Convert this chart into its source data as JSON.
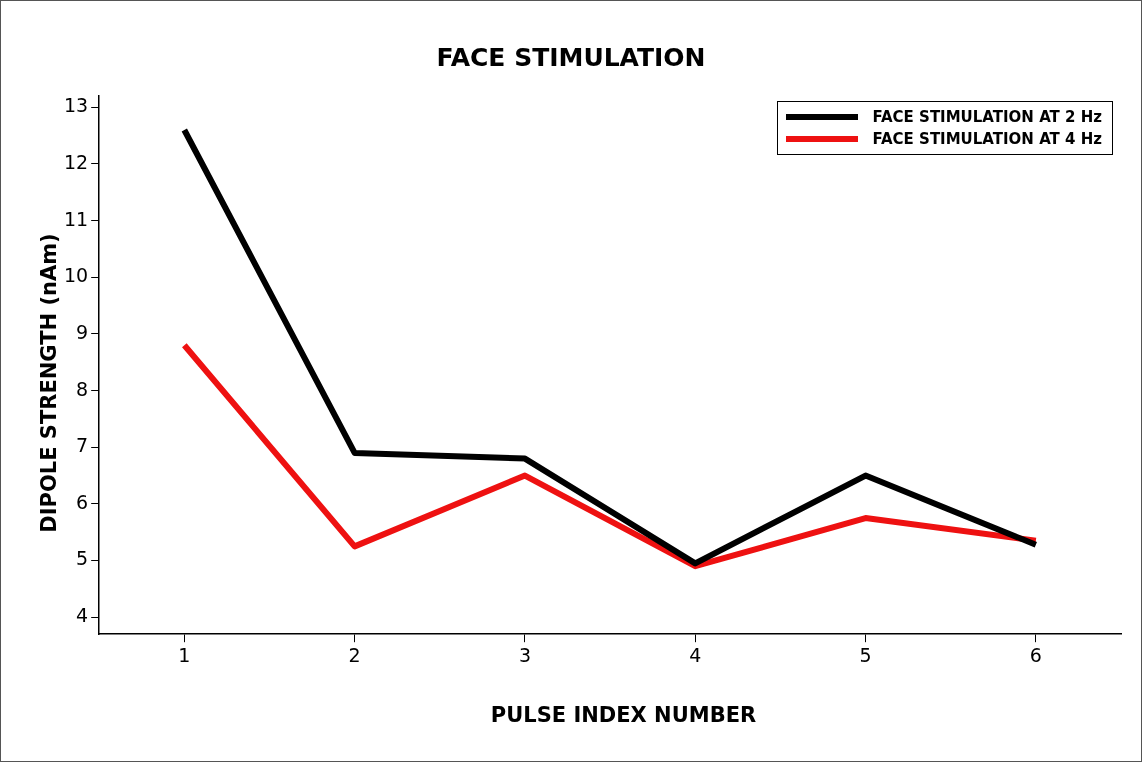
{
  "chart_data": {
    "type": "line",
    "title": "FACE STIMULATION",
    "xlabel": "PULSE INDEX NUMBER",
    "ylabel": "DIPOLE STRENGTH (nAm)",
    "x": [
      1,
      2,
      3,
      4,
      5,
      6
    ],
    "series": [
      {
        "name": "FACE STIMULATION AT 2 Hz",
        "color": "#000000",
        "values": [
          12.6,
          6.9,
          6.8,
          4.95,
          6.5,
          5.28
        ]
      },
      {
        "name": "FACE STIMULATION AT 4 Hz",
        "color": "#ee1111",
        "values": [
          8.8,
          5.25,
          6.5,
          4.9,
          5.75,
          5.35
        ]
      }
    ],
    "xlim": [
      0.5,
      6.5
    ],
    "xticks": [
      1,
      2,
      3,
      4,
      5,
      6
    ],
    "ylim": [
      3.7,
      13.2
    ],
    "yticks": [
      4,
      5,
      6,
      7,
      8,
      9,
      10,
      11,
      12,
      13
    ],
    "grid": false,
    "legend": "top right",
    "marker": "none",
    "line_style": "solid"
  }
}
